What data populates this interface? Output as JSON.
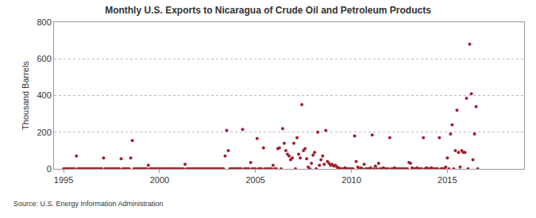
{
  "chart_data": {
    "type": "scatter",
    "title": "Monthly U.S. Exports to Nicaragua of Crude Oil and Petroleum Products",
    "y_label": "Thousand Barrels",
    "annotations": [
      "Source: U.S. Energy Information Administration"
    ],
    "color": "#a0202a",
    "marker": "circle",
    "grid": true,
    "xlim": [
      1994.5,
      2019
    ],
    "xticks": [
      1995,
      2000,
      2005,
      2010,
      2015
    ],
    "ylim": [
      0,
      800
    ],
    "yticks": [
      0,
      200,
      400,
      600,
      800
    ],
    "x": [
      1995,
      1995.083,
      1995.167,
      1995.25,
      1995.333,
      1995.417,
      1995.5,
      1995.583,
      1995.667,
      1995.75,
      1995.833,
      1995.917,
      1996,
      1996.083,
      1996.167,
      1996.25,
      1996.333,
      1996.417,
      1996.5,
      1996.583,
      1996.667,
      1996.75,
      1996.833,
      1996.917,
      1997,
      1997.083,
      1997.167,
      1997.25,
      1997.333,
      1997.417,
      1997.5,
      1997.583,
      1997.667,
      1997.75,
      1997.833,
      1997.917,
      1998,
      1998.083,
      1998.167,
      1998.25,
      1998.333,
      1998.417,
      1998.5,
      1998.583,
      1998.667,
      1998.75,
      1998.833,
      1998.917,
      1999,
      1999.083,
      1999.167,
      1999.25,
      1999.333,
      1999.417,
      1999.5,
      1999.583,
      1999.667,
      1999.75,
      1999.833,
      1999.917,
      2000,
      2000.083,
      2000.167,
      2000.25,
      2000.333,
      2000.417,
      2000.5,
      2000.583,
      2000.667,
      2000.75,
      2000.833,
      2000.917,
      2001,
      2001.083,
      2001.167,
      2001.25,
      2001.333,
      2001.417,
      2001.5,
      2001.583,
      2001.667,
      2001.75,
      2001.833,
      2001.917,
      2002,
      2002.083,
      2002.167,
      2002.25,
      2002.333,
      2002.417,
      2002.5,
      2002.583,
      2002.667,
      2002.75,
      2002.833,
      2002.917,
      2003,
      2003.083,
      2003.167,
      2003.25,
      2003.333,
      2003.417,
      2003.5,
      2003.583,
      2003.667,
      2003.75,
      2003.833,
      2003.917,
      2004,
      2004.083,
      2004.167,
      2004.25,
      2004.333,
      2004.417,
      2004.5,
      2004.583,
      2004.667,
      2004.75,
      2004.833,
      2004.917,
      2005,
      2005.083,
      2005.167,
      2005.25,
      2005.333,
      2005.417,
      2005.5,
      2005.583,
      2005.667,
      2005.75,
      2005.833,
      2005.917,
      2006,
      2006.083,
      2006.167,
      2006.25,
      2006.333,
      2006.417,
      2006.5,
      2006.583,
      2006.667,
      2006.75,
      2006.833,
      2006.917,
      2007,
      2007.083,
      2007.167,
      2007.25,
      2007.333,
      2007.417,
      2007.5,
      2007.583,
      2007.667,
      2007.75,
      2007.833,
      2007.917,
      2008,
      2008.083,
      2008.167,
      2008.25,
      2008.333,
      2008.417,
      2008.5,
      2008.583,
      2008.667,
      2008.75,
      2008.833,
      2008.917,
      2009,
      2009.083,
      2009.167,
      2009.25,
      2009.333,
      2009.417,
      2009.5,
      2009.583,
      2009.667,
      2009.75,
      2009.833,
      2009.917,
      2010,
      2010.083,
      2010.167,
      2010.25,
      2010.333,
      2010.417,
      2010.5,
      2010.583,
      2010.667,
      2010.75,
      2010.833,
      2010.917,
      2011,
      2011.083,
      2011.167,
      2011.25,
      2011.333,
      2011.417,
      2011.5,
      2011.583,
      2011.667,
      2011.75,
      2011.833,
      2011.917,
      2012,
      2012.083,
      2012.167,
      2012.25,
      2012.333,
      2012.417,
      2012.5,
      2012.583,
      2012.667,
      2012.75,
      2012.833,
      2012.917,
      2013,
      2013.083,
      2013.167,
      2013.25,
      2013.333,
      2013.417,
      2013.5,
      2013.583,
      2013.667,
      2013.75,
      2013.833,
      2013.917,
      2014,
      2014.083,
      2014.167,
      2014.25,
      2014.333,
      2014.417,
      2014.5,
      2014.583,
      2014.667,
      2014.75,
      2014.833,
      2014.917,
      2015,
      2015.083,
      2015.167,
      2015.25,
      2015.333,
      2015.417,
      2015.5,
      2015.583,
      2015.667,
      2015.75,
      2015.833,
      2015.917,
      2016,
      2016.083,
      2016.167,
      2016.25,
      2016.333,
      2016.417,
      2016.5,
      2016.583
    ],
    "values": [
      0,
      0,
      0,
      0,
      0,
      0,
      0,
      0,
      70,
      0,
      0,
      0,
      0,
      0,
      0,
      0,
      0,
      0,
      0,
      0,
      0,
      0,
      0,
      0,
      0,
      60,
      0,
      0,
      0,
      0,
      0,
      0,
      0,
      0,
      0,
      0,
      55,
      0,
      0,
      0,
      0,
      0,
      60,
      155,
      0,
      0,
      0,
      0,
      0,
      0,
      0,
      0,
      0,
      20,
      0,
      0,
      0,
      0,
      0,
      0,
      0,
      0,
      0,
      0,
      0,
      0,
      0,
      0,
      0,
      0,
      0,
      0,
      0,
      0,
      0,
      0,
      25,
      0,
      0,
      0,
      0,
      0,
      0,
      0,
      0,
      0,
      0,
      0,
      0,
      0,
      0,
      0,
      0,
      0,
      0,
      0,
      0,
      0,
      0,
      0,
      0,
      70,
      210,
      100,
      0,
      0,
      0,
      0,
      0,
      0,
      0,
      0,
      215,
      0,
      0,
      0,
      0,
      35,
      0,
      0,
      0,
      165,
      0,
      0,
      0,
      115,
      0,
      0,
      0,
      0,
      0,
      20,
      0,
      0,
      110,
      115,
      0,
      220,
      140,
      100,
      80,
      70,
      50,
      60,
      140,
      0,
      170,
      80,
      60,
      350,
      100,
      110,
      55,
      10,
      0,
      30,
      75,
      90,
      0,
      200,
      20,
      50,
      70,
      25,
      210,
      40,
      30,
      20,
      25,
      15,
      20,
      10,
      5,
      0,
      0,
      0,
      5,
      0,
      0,
      0,
      0,
      0,
      180,
      40,
      10,
      0,
      5,
      0,
      25,
      0,
      0,
      0,
      5,
      185,
      0,
      15,
      0,
      30,
      0,
      0,
      5,
      0,
      0,
      0,
      170,
      0,
      0,
      5,
      0,
      0,
      0,
      0,
      0,
      0,
      0,
      0,
      35,
      30,
      5,
      0,
      0,
      5,
      0,
      0,
      0,
      170,
      0,
      5,
      0,
      0,
      5,
      0,
      0,
      0,
      0,
      170,
      0,
      0,
      0,
      10,
      60,
      0,
      190,
      240,
      0,
      100,
      320,
      90,
      10,
      100,
      90,
      90,
      385,
      0,
      680,
      410,
      50,
      190,
      340,
      0
    ]
  }
}
